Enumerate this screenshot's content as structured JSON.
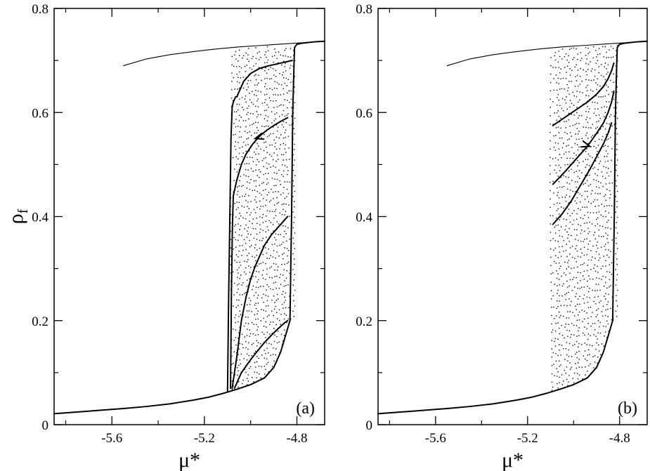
{
  "chart_data": [
    {
      "type": "line",
      "panel_label": "(a)",
      "xlabel": "μ*",
      "ylabel": "ρf",
      "ylabel_main": "ρ",
      "ylabel_sub": "f",
      "xlim": [
        -5.85,
        -4.68
      ],
      "ylim": [
        0,
        0.8
      ],
      "xticks": [
        -5.6,
        -5.2,
        -4.8
      ],
      "xtick_labels": [
        "-5.6",
        "-5.2",
        "-4.8"
      ],
      "yticks": [
        0,
        0.2,
        0.4,
        0.6,
        0.8
      ],
      "ytick_labels": [
        "0",
        "0.2",
        "0.4",
        "0.6",
        "0.8"
      ],
      "grid": false,
      "legend": "none",
      "series": [
        {
          "style": "thin",
          "x": [
            -5.55,
            -5.45,
            -5.35,
            -5.25,
            -5.15,
            -5.05,
            -4.95,
            -4.85,
            -4.78,
            -4.72,
            -4.68
          ],
          "y": [
            0.69,
            0.703,
            0.711,
            0.717,
            0.722,
            0.726,
            0.729,
            0.732,
            0.734,
            0.736,
            0.737
          ]
        },
        {
          "style": "thick",
          "x": [
            -5.85,
            -5.7,
            -5.55,
            -5.45,
            -5.35,
            -5.25,
            -5.18,
            -5.12,
            -5.06,
            -5.0,
            -4.94,
            -4.9,
            -4.87,
            -4.85,
            -4.83
          ],
          "y": [
            0.021,
            0.026,
            0.031,
            0.035,
            0.04,
            0.047,
            0.053,
            0.06,
            0.068,
            0.077,
            0.09,
            0.11,
            0.14,
            0.17,
            0.2
          ]
        },
        {
          "style": "thick",
          "x": [
            -4.83,
            -4.823,
            -4.818,
            -4.815,
            -4.812,
            -4.81,
            -4.8,
            -4.78,
            -4.76,
            -4.72,
            -4.68
          ],
          "y": [
            0.2,
            0.4,
            0.6,
            0.65,
            0.7,
            0.725,
            0.731,
            0.733,
            0.734,
            0.736,
            0.737
          ]
        },
        {
          "style": "thick",
          "x": [
            -5.1,
            -5.095,
            -5.09,
            -5.085,
            -5.08,
            -5.075,
            -5.07,
            -5.065
          ],
          "y": [
            0.065,
            0.25,
            0.4,
            0.55,
            0.61,
            0.62,
            0.625,
            0.63
          ]
        },
        {
          "style": "thick",
          "x": [
            -5.06,
            -5.03,
            -5.0,
            -4.96,
            -4.92,
            -4.88,
            -4.84,
            -4.82
          ],
          "y": [
            0.63,
            0.66,
            0.675,
            0.685,
            0.69,
            0.694,
            0.698,
            0.7
          ]
        },
        {
          "style": "thick",
          "x": [
            -5.087,
            -5.083,
            -5.079,
            -5.075
          ],
          "y": [
            0.07,
            0.26,
            0.38,
            0.44
          ]
        },
        {
          "style": "thick",
          "x": [
            -5.075,
            -5.06,
            -5.04,
            -5.02,
            -4.99,
            -4.96,
            -4.93,
            -4.9,
            -4.87,
            -4.84
          ],
          "y": [
            0.44,
            0.47,
            0.5,
            0.52,
            0.54,
            0.555,
            0.566,
            0.575,
            0.583,
            0.59
          ]
        },
        {
          "style": "thick",
          "x": [
            -5.08,
            -5.06,
            -5.04,
            -5.02,
            -5.0,
            -4.98,
            -4.96,
            -4.94,
            -4.91,
            -4.88,
            -4.85,
            -4.84
          ],
          "y": [
            0.07,
            0.13,
            0.2,
            0.245,
            0.28,
            0.305,
            0.325,
            0.345,
            0.365,
            0.38,
            0.395,
            0.4
          ]
        },
        {
          "style": "thick",
          "x": [
            -5.07,
            -5.04,
            -5.0,
            -4.97,
            -4.94,
            -4.91,
            -4.88,
            -4.85,
            -4.84
          ],
          "y": [
            0.07,
            0.1,
            0.125,
            0.142,
            0.158,
            0.172,
            0.185,
            0.197,
            0.2
          ]
        }
      ],
      "arrows": [
        {
          "x": -4.98,
          "y": 0.55,
          "direction": "left"
        }
      ]
    },
    {
      "type": "line",
      "panel_label": "(b)",
      "xlabel": "μ*",
      "ylabel": "",
      "xlim": [
        -5.85,
        -4.68
      ],
      "ylim": [
        0,
        0.8
      ],
      "xticks": [
        -5.6,
        -5.2,
        -4.8
      ],
      "xtick_labels": [
        "-5.6",
        "-5.2",
        "-4.8"
      ],
      "yticks": [
        0,
        0.2,
        0.4,
        0.6,
        0.8
      ],
      "ytick_labels": [
        "0",
        "0.2",
        "0.4",
        "0.6",
        "0.8"
      ],
      "grid": false,
      "legend": "none",
      "series": [
        {
          "style": "thin",
          "x": [
            -5.55,
            -5.45,
            -5.35,
            -5.25,
            -5.15,
            -5.05,
            -4.95,
            -4.85,
            -4.78,
            -4.72,
            -4.68
          ],
          "y": [
            0.69,
            0.703,
            0.711,
            0.717,
            0.722,
            0.726,
            0.729,
            0.732,
            0.734,
            0.736,
            0.737
          ]
        },
        {
          "style": "thick",
          "x": [
            -5.85,
            -5.7,
            -5.55,
            -5.45,
            -5.35,
            -5.25,
            -5.18,
            -5.12,
            -5.06,
            -5.0,
            -4.94,
            -4.9,
            -4.87,
            -4.85,
            -4.83
          ],
          "y": [
            0.021,
            0.026,
            0.031,
            0.035,
            0.04,
            0.047,
            0.053,
            0.06,
            0.068,
            0.077,
            0.09,
            0.11,
            0.14,
            0.17,
            0.2
          ]
        },
        {
          "style": "thick",
          "x": [
            -4.83,
            -4.823,
            -4.818,
            -4.815,
            -4.812,
            -4.81,
            -4.8,
            -4.78,
            -4.76,
            -4.72,
            -4.68
          ],
          "y": [
            0.2,
            0.4,
            0.6,
            0.65,
            0.7,
            0.725,
            0.731,
            0.733,
            0.734,
            0.736,
            0.737
          ]
        },
        {
          "style": "thick",
          "x": [
            -5.09,
            -5.04,
            -4.99,
            -4.94,
            -4.9,
            -4.87,
            -4.85,
            -4.835,
            -4.825
          ],
          "y": [
            0.575,
            0.59,
            0.605,
            0.62,
            0.635,
            0.65,
            0.665,
            0.68,
            0.695
          ]
        },
        {
          "style": "thick",
          "x": [
            -5.09,
            -5.04,
            -4.99,
            -4.94,
            -4.9,
            -4.87,
            -4.85,
            -4.835,
            -4.825
          ],
          "y": [
            0.462,
            0.485,
            0.51,
            0.535,
            0.56,
            0.58,
            0.6,
            0.62,
            0.64
          ]
        },
        {
          "style": "thick",
          "x": [
            -5.09,
            -5.05,
            -5.01,
            -4.97,
            -4.93,
            -4.9,
            -4.87,
            -4.85,
            -4.835
          ],
          "y": [
            0.385,
            0.405,
            0.43,
            0.46,
            0.49,
            0.515,
            0.54,
            0.56,
            0.58
          ]
        }
      ],
      "arrows": [
        {
          "x": -4.93,
          "y": 0.535,
          "direction": "right"
        }
      ]
    }
  ]
}
